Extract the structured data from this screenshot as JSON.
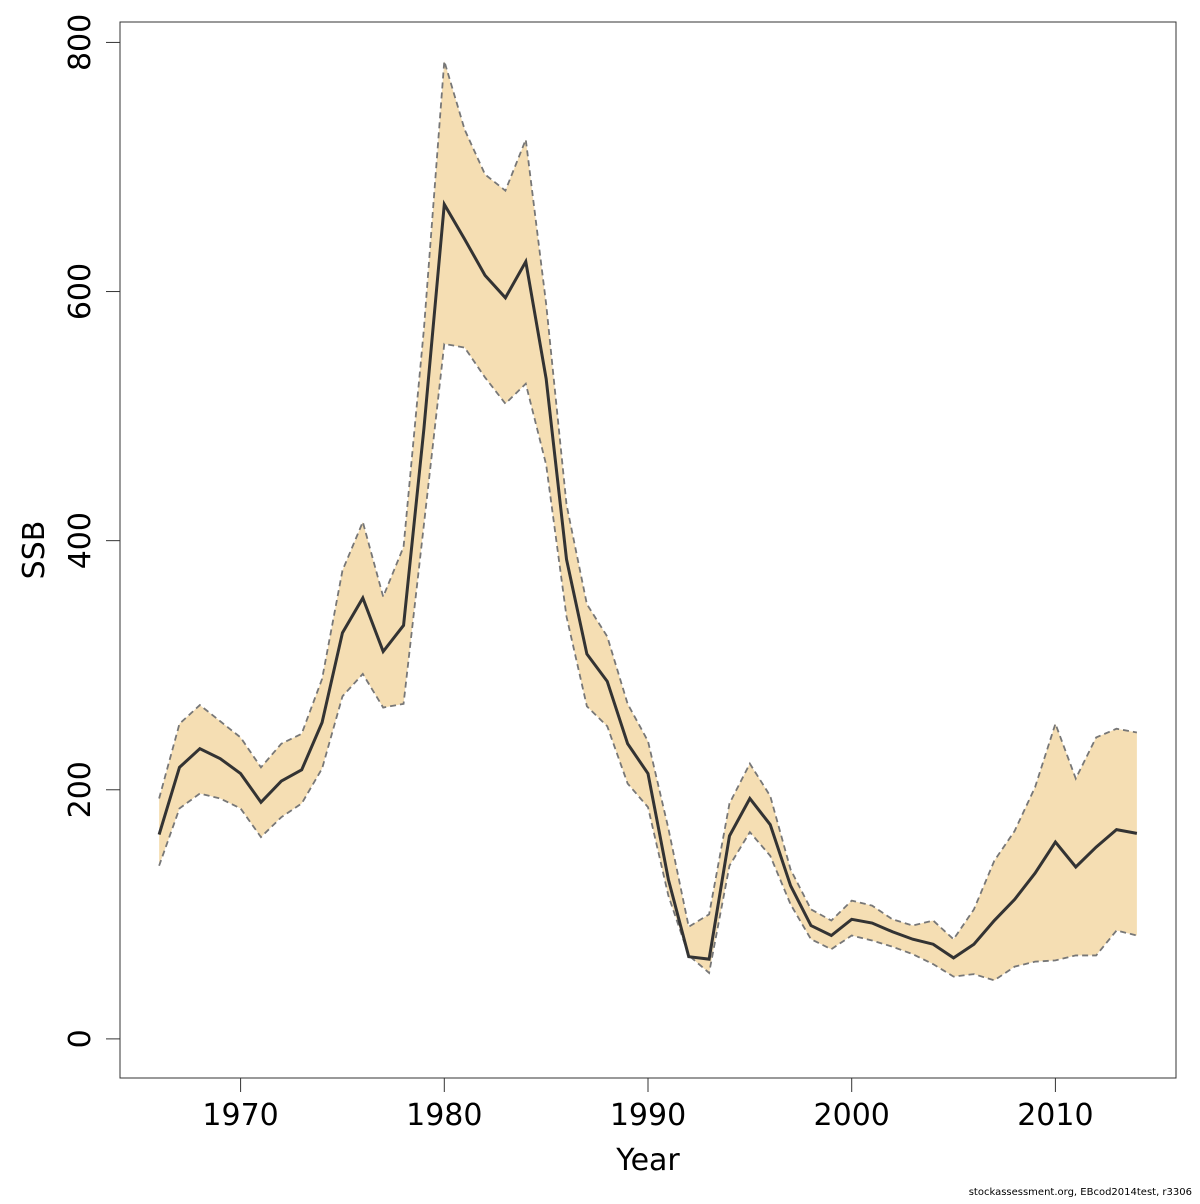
{
  "chart_data": {
    "type": "line",
    "x_label": "Year",
    "y_label": "SSB",
    "footnote": "stockassessment.org, EBcod2014test, r3306",
    "x": [
      1966,
      1967,
      1968,
      1969,
      1970,
      1971,
      1972,
      1973,
      1974,
      1975,
      1976,
      1977,
      1978,
      1979,
      1980,
      1981,
      1982,
      1983,
      1984,
      1985,
      1986,
      1987,
      1988,
      1989,
      1990,
      1991,
      1992,
      1993,
      1994,
      1995,
      1996,
      1997,
      1998,
      1999,
      2000,
      2001,
      2002,
      2003,
      2004,
      2005,
      2006,
      2007,
      2008,
      2009,
      2010,
      2011,
      2012,
      2013,
      2014
    ],
    "series": [
      {
        "color": "#333333",
        "values": [
          164,
          218,
          233,
          225,
          213,
          190,
          207,
          216,
          254,
          326,
          354,
          311,
          332,
          490,
          670,
          642,
          613,
          595,
          624,
          530,
          385,
          309,
          287,
          237,
          213,
          128,
          66,
          64,
          163,
          193,
          172,
          123,
          91,
          83,
          96,
          93,
          86,
          80,
          76,
          65,
          76,
          95,
          112,
          133,
          158,
          138,
          154,
          168,
          165
        ]
      }
    ],
    "band": {
      "color": "#f5deb3",
      "edge_color": "#777777",
      "upper": [
        193,
        253,
        268,
        255,
        242,
        218,
        237,
        245,
        289,
        376,
        415,
        355,
        395,
        570,
        785,
        730,
        694,
        681,
        722,
        590,
        429,
        349,
        323,
        269,
        239,
        169,
        90,
        100,
        189,
        221,
        195,
        136,
        104,
        95,
        111,
        107,
        96,
        91,
        95,
        80,
        104,
        143,
        167,
        202,
        253,
        209,
        242,
        249,
        246
      ],
      "lower": [
        139,
        185,
        197,
        193,
        185,
        162,
        178,
        189,
        217,
        275,
        293,
        266,
        269,
        413,
        558,
        555,
        531,
        510,
        526,
        461,
        339,
        267,
        251,
        205,
        186,
        115,
        67,
        53,
        139,
        166,
        147,
        108,
        80,
        72,
        83,
        79,
        74,
        68,
        60,
        50,
        52,
        47,
        58,
        62,
        63,
        67,
        67,
        87,
        83
      ]
    },
    "xlim": [
      1964.08,
      2015.92
    ],
    "xticks": [
      1970,
      1980,
      1990,
      2000,
      2010
    ],
    "ylim": [
      -31.4,
      816.4
    ],
    "yticks": [
      0,
      200,
      400,
      600,
      800
    ]
  }
}
